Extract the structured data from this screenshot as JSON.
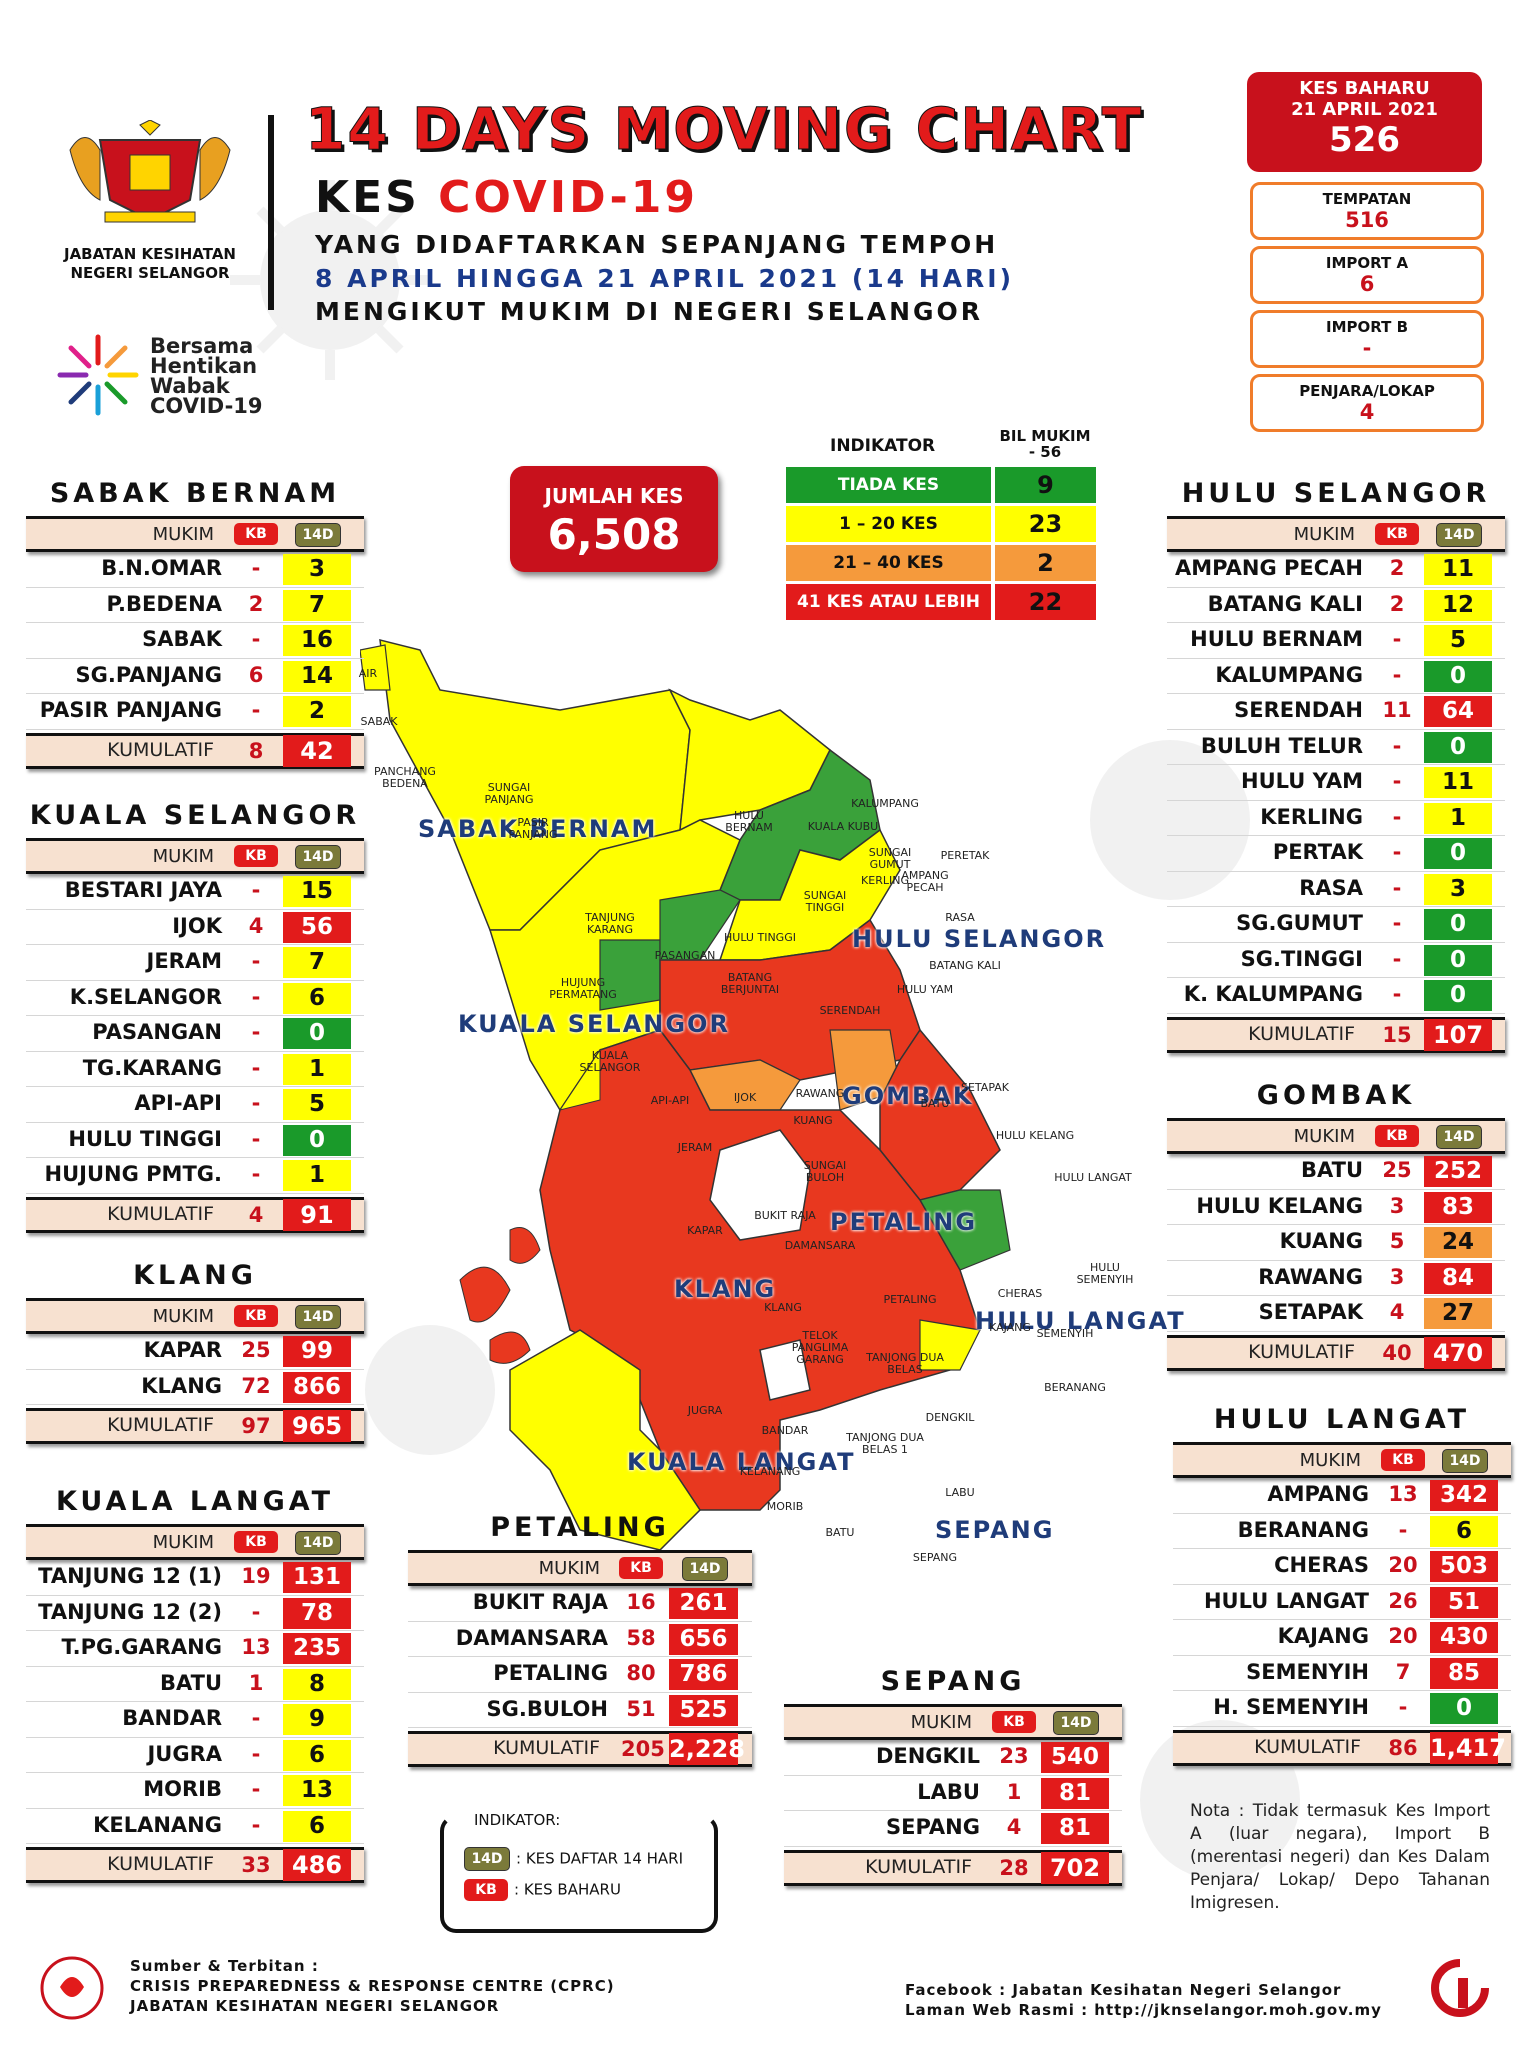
{
  "header": {
    "dept_line1": "JABATAN KESIHATAN",
    "dept_line2": "NEGERI SELANGOR",
    "title": "14 DAYS MOVING CHART",
    "title2_a": "KES",
    "title2_b": "COVID-19",
    "sub1": "YANG DIDAFTARKAN SEPANJANG TEMPOH",
    "sub2": "8 APRIL HINGGA 21 APRIL 2021 (14 HARI)",
    "sub3": "MENGIKUT MUKIM DI NEGERI SELANGOR",
    "campaign": [
      "Bersama",
      "Hentikan",
      "Wabak",
      "COVID-19"
    ]
  },
  "kes_baharu": {
    "label": "KES BAHARU",
    "date": "21 APRIL 2021",
    "value": "526",
    "tempatan_label": "TEMPATAN",
    "tempatan": "516",
    "importa_label": "IMPORT A",
    "importa": "6",
    "importb_label": "IMPORT B",
    "importb": "-",
    "penjara_label": "PENJARA/LOKAP",
    "penjara": "4"
  },
  "jumlah": {
    "label": "JUMLAH KES",
    "value": "6,508"
  },
  "indikator": {
    "h1": "INDIKATOR",
    "h2a": "BIL MUKIM",
    "h2b": "- 56",
    "rows": [
      {
        "label": "TIADA KES",
        "count": "9",
        "color": "#1a9a2a"
      },
      {
        "label": "1 – 20 KES",
        "count": "23",
        "color": "#ffff00"
      },
      {
        "label": "21 – 40 KES",
        "count": "2",
        "color": "#f59a3c"
      },
      {
        "label": "41 KES ATAU LEBIH",
        "count": "22",
        "color": "#e21b1b"
      }
    ]
  },
  "col": {
    "mukim": "MUKIM",
    "kb": "KB",
    "d14": "14D"
  },
  "kumulatif": "KUMULATIF",
  "districts": {
    "sabak": {
      "name": "SABAK BERNAM",
      "rows": [
        [
          "B.N.OMAR",
          "-",
          "3",
          "y"
        ],
        [
          "P.BEDENA",
          "2",
          "7",
          "y"
        ],
        [
          "SABAK",
          "-",
          "16",
          "y"
        ],
        [
          "SG.PANJANG",
          "6",
          "14",
          "y"
        ],
        [
          "PASIR PANJANG",
          "-",
          "2",
          "y"
        ]
      ],
      "kb": "8",
      "d14": "42"
    },
    "kualasel": {
      "name": "KUALA SELANGOR",
      "rows": [
        [
          "BESTARI JAYA",
          "-",
          "15",
          "y"
        ],
        [
          "IJOK",
          "4",
          "56",
          "r"
        ],
        [
          "JERAM",
          "-",
          "7",
          "y"
        ],
        [
          "K.SELANGOR",
          "-",
          "6",
          "y"
        ],
        [
          "PASANGAN",
          "-",
          "0",
          "g"
        ],
        [
          "TG.KARANG",
          "-",
          "1",
          "y"
        ],
        [
          "API-API",
          "-",
          "5",
          "y"
        ],
        [
          "HULU TINGGI",
          "-",
          "0",
          "g"
        ],
        [
          "HUJUNG PMTG.",
          "-",
          "1",
          "y"
        ]
      ],
      "kb": "4",
      "d14": "91"
    },
    "klang": {
      "name": "KLANG",
      "rows": [
        [
          "KAPAR",
          "25",
          "99",
          "r"
        ],
        [
          "KLANG",
          "72",
          "866",
          "r"
        ]
      ],
      "kb": "97",
      "d14": "965"
    },
    "kualalangat": {
      "name": "KUALA LANGAT",
      "rows": [
        [
          "TANJUNG 12 (1)",
          "19",
          "131",
          "r"
        ],
        [
          "TANJUNG 12 (2)",
          "-",
          "78",
          "r"
        ],
        [
          "T.PG.GARANG",
          "13",
          "235",
          "r"
        ],
        [
          "BATU",
          "1",
          "8",
          "y"
        ],
        [
          "BANDAR",
          "-",
          "9",
          "y"
        ],
        [
          "JUGRA",
          "-",
          "6",
          "y"
        ],
        [
          "MORIB",
          "-",
          "13",
          "y"
        ],
        [
          "KELANANG",
          "-",
          "6",
          "y"
        ]
      ],
      "kb": "33",
      "d14": "486"
    },
    "petaling": {
      "name": "PETALING",
      "rows": [
        [
          "BUKIT RAJA",
          "16",
          "261",
          "r"
        ],
        [
          "DAMANSARA",
          "58",
          "656",
          "r"
        ],
        [
          "PETALING",
          "80",
          "786",
          "r"
        ],
        [
          "SG.BULOH",
          "51",
          "525",
          "r"
        ]
      ],
      "kb": "205",
      "d14": "2,228"
    },
    "sepang": {
      "name": "SEPANG",
      "rows": [
        [
          "DENGKIL",
          "23",
          "540",
          "r"
        ],
        [
          "LABU",
          "1",
          "81",
          "r"
        ],
        [
          "SEPANG",
          "4",
          "81",
          "r"
        ]
      ],
      "kb": "28",
      "d14": "702"
    },
    "huluselangor": {
      "name": "HULU SELANGOR",
      "rows": [
        [
          "AMPANG PECAH",
          "2",
          "11",
          "y"
        ],
        [
          "BATANG KALI",
          "2",
          "12",
          "y"
        ],
        [
          "HULU BERNAM",
          "-",
          "5",
          "y"
        ],
        [
          "KALUMPANG",
          "-",
          "0",
          "g"
        ],
        [
          "SERENDAH",
          "11",
          "64",
          "r"
        ],
        [
          "BULUH TELUR",
          "-",
          "0",
          "g"
        ],
        [
          "HULU YAM",
          "-",
          "11",
          "y"
        ],
        [
          "KERLING",
          "-",
          "1",
          "y"
        ],
        [
          "PERTAK",
          "-",
          "0",
          "g"
        ],
        [
          "RASA",
          "-",
          "3",
          "y"
        ],
        [
          "SG.GUMUT",
          "-",
          "0",
          "g"
        ],
        [
          "SG.TINGGI",
          "-",
          "0",
          "g"
        ],
        [
          "K. KALUMPANG",
          "-",
          "0",
          "g"
        ]
      ],
      "kb": "15",
      "d14": "107"
    },
    "gombak": {
      "name": "GOMBAK",
      "rows": [
        [
          "BATU",
          "25",
          "252",
          "r"
        ],
        [
          "HULU KELANG",
          "3",
          "83",
          "r"
        ],
        [
          "KUANG",
          "5",
          "24",
          "o"
        ],
        [
          "RAWANG",
          "3",
          "84",
          "r"
        ],
        [
          "SETAPAK",
          "4",
          "27",
          "o"
        ]
      ],
      "kb": "40",
      "d14": "470"
    },
    "hululangat": {
      "name": "HULU LANGAT",
      "rows": [
        [
          "AMPANG",
          "13",
          "342",
          "r"
        ],
        [
          "BERANANG",
          "-",
          "6",
          "y"
        ],
        [
          "CHERAS",
          "20",
          "503",
          "r"
        ],
        [
          "HULU LANGAT",
          "26",
          "51",
          "r"
        ],
        [
          "KAJANG",
          "20",
          "430",
          "r"
        ],
        [
          "SEMENYIH",
          "7",
          "85",
          "r"
        ],
        [
          "H. SEMENYIH",
          "-",
          "0",
          "g"
        ]
      ],
      "kb": "86",
      "d14": "1,417"
    }
  },
  "map": {
    "district_labels": [
      "SABAK BERNAM",
      "HULU SELANGOR",
      "KUALA SELANGOR",
      "GOMBAK",
      "PETALING",
      "KLANG",
      "HULU LANGAT",
      "KUALA LANGAT",
      "SEPANG"
    ],
    "mukim_labels": [
      "AIR",
      "SABAK",
      "PANCHANG BEDENA",
      "SUNGAI PANJANG",
      "PASIR PANJANG",
      "HULU BERNAM",
      "KALUMPANG",
      "KUALA KUBU",
      "SUNGAI GUMUT",
      "PERETAK",
      "KERLING",
      "AMPANG PECAH",
      "SUNGAI TINGGI",
      "RASA",
      "TANJUNG KARANG",
      "HULU TINGGI",
      "PASANGAN",
      "BATANG BERJUNTAI",
      "HUJUNG PERMATANG",
      "BATANG KALI",
      "HULU YAM",
      "SERENDAH",
      "KUALA SELANGOR",
      "API-API",
      "IJOK",
      "RAWANG",
      "SETAPAK",
      "KUANG",
      "BATU",
      "JERAM",
      "SUNGAI BULOH",
      "HULU KELANG",
      "HULU LANGAT",
      "KAPAR",
      "BUKIT RAJA",
      "DAMANSARA",
      "KLANG",
      "PETALING",
      "CHERAS",
      "HULU SEMENYIH",
      "KAJANG",
      "SEMENYIH",
      "TELOK PANGLIMA GARANG",
      "TANJONG DUA BELAS",
      "BERANANG",
      "JUGRA",
      "BANDAR",
      "DENGKIL",
      "TANJONG DUA BELAS 1",
      "KELANANG",
      "LABU",
      "MORIB",
      "BATU",
      "SEPANG"
    ]
  },
  "legend": {
    "title": "INDIKATOR:",
    "d14_desc": ": KES DAFTAR 14 HARI",
    "kb_desc": ": KES BAHARU"
  },
  "nota": "Nota : Tidak termasuk Kes Import A (luar negara), Import B (merentasi negeri) dan Kes Dalam Penjara/ Lokap/ Depo Tahanan Imigresen.",
  "footer": {
    "l1": "Sumber & Terbitan :",
    "l2": "CRISIS PREPAREDNESS & RESPONSE CENTRE (CPRC)",
    "l3": "JABATAN KESIHATAN NEGERI SELANGOR",
    "r1": "Facebook : Jabatan Kesihatan Negeri Selangor",
    "r2": "Laman Web Rasmi : http://jknselangor.moh.gov.my"
  },
  "colors": {
    "red": "#e21b1b",
    "yellow": "#ffff00",
    "green": "#1a9a2a",
    "orange": "#f59a3c",
    "navy": "#1f3c7a"
  }
}
